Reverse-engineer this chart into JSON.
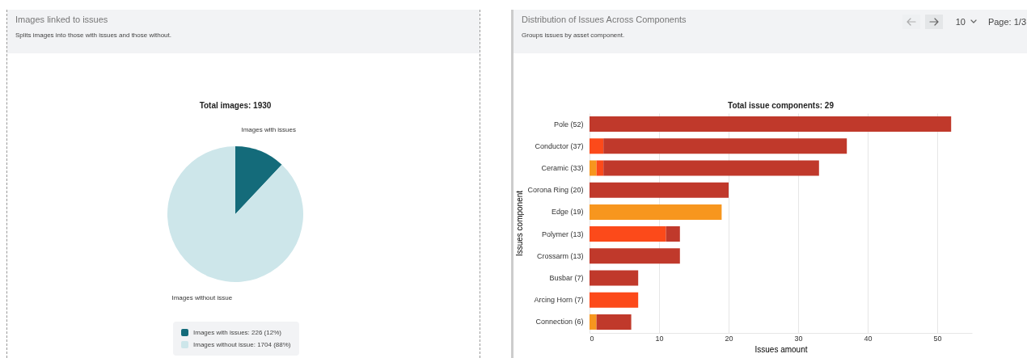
{
  "chart_data": [
    {
      "type": "pie",
      "title": "Images linked to issues",
      "subtitle": "Splits images into those with issues and those without.",
      "annotations": [
        "Total images: 1930",
        "Images with issues: 226 (12%)",
        "Images without issue: 1704 (88%)"
      ],
      "categories": [
        "Images with issues",
        "Images without issue"
      ],
      "values": [
        12,
        88
      ],
      "colors": [
        "#146b7a",
        "#cde6ea"
      ]
    },
    {
      "type": "bar",
      "orientation": "horizontal",
      "stacked": true,
      "title": "Distribution of Issues Across Components",
      "subtitle": "Groups issues by asset component.",
      "annotations": [
        "Total issue components: 29",
        "10",
        "Page: 1/3"
      ],
      "xlabel": "Issues amount",
      "ylabel": "Issues component",
      "categories": [
        "Pole (52)",
        "Conductor (37)",
        "Ceramic (33)",
        "Corona Ring (20)",
        "Edge (19)",
        "Polymer (13)",
        "Crossarm (13)",
        "Busbar (7)",
        "Arcing Horn (7)",
        "Connection (6)"
      ],
      "series": [
        {
          "color": "#f7961e",
          "values": [
            null,
            null,
            1,
            null,
            19,
            null,
            null,
            null,
            null,
            1
          ]
        },
        {
          "color": "#fc4a1a",
          "values": [
            null,
            2,
            1,
            null,
            null,
            11,
            null,
            null,
            7,
            null
          ]
        },
        {
          "color": "#c0392b",
          "values": [
            52,
            35,
            31,
            20,
            null,
            2,
            13,
            7,
            null,
            5
          ]
        }
      ],
      "xlim": [
        0,
        55
      ],
      "xticks": [
        0,
        10,
        20,
        30,
        40,
        50
      ],
      "grid": "x"
    }
  ]
}
